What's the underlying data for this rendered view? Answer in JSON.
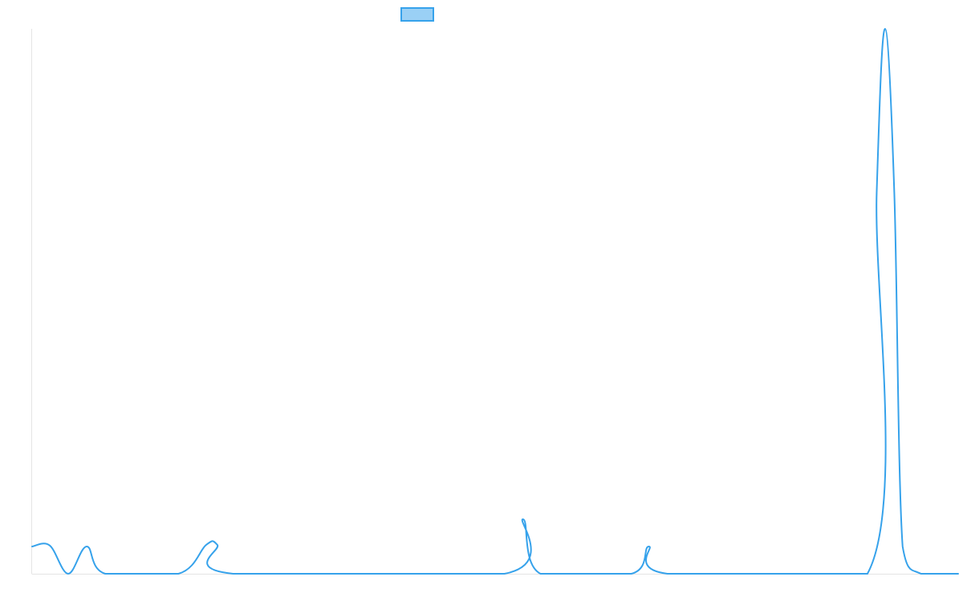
{
  "chart_data": {
    "type": "line",
    "title": "",
    "xlabel": "",
    "ylabel": "",
    "grid": false,
    "legend": "top-center",
    "x_range": [
      0,
      1
    ],
    "ylim": [
      0,
      1
    ],
    "series": [
      {
        "name": "",
        "color": "#36a2eb",
        "fill": "#9ad0f5",
        "points": [
          [
            0.0,
            0.05
          ],
          [
            0.019,
            0.052
          ],
          [
            0.039,
            0.0
          ],
          [
            0.059,
            0.05
          ],
          [
            0.079,
            0.0
          ],
          [
            0.158,
            0.0
          ],
          [
            0.188,
            0.053
          ],
          [
            0.2,
            0.053
          ],
          [
            0.217,
            0.0
          ],
          [
            0.51,
            0.0
          ],
          [
            0.53,
            0.1
          ],
          [
            0.549,
            0.0
          ],
          [
            0.647,
            0.0
          ],
          [
            0.666,
            0.05
          ],
          [
            0.686,
            0.0
          ],
          [
            0.902,
            0.0
          ],
          [
            0.912,
            0.7
          ],
          [
            0.921,
            1.0
          ],
          [
            0.931,
            0.7
          ],
          [
            0.94,
            0.05
          ],
          [
            0.96,
            0.0
          ],
          [
            1.0,
            0.0
          ]
        ]
      }
    ]
  }
}
